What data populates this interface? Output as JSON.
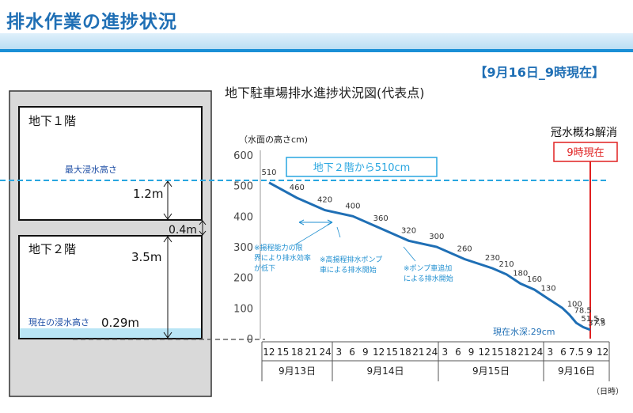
{
  "header": {
    "title": "排水作業の進捗状況",
    "as_of": "【9月16日_9時現在】"
  },
  "building": {
    "floor1_label": "地下１階",
    "floor2_label": "地下２階",
    "max_flood_label": "最大浸水高さ",
    "current_flood_label": "現在の浸水高さ",
    "current_flood_value": "0.29m",
    "dim_upper": "1.2m",
    "dim_slab": "0.4m",
    "dim_lower": "3.5m"
  },
  "chart_data": {
    "type": "line",
    "title": "地下駐車場排水進捗状況図(代表点)",
    "ylabel": "（水面の高さcm)",
    "xlabel": "（日時）",
    "ylim": [
      0,
      600
    ],
    "yticks": [
      0,
      100,
      200,
      300,
      400,
      500,
      600
    ],
    "x_ticks": {
      "9月13日": [
        "12",
        "15",
        "18",
        "21",
        "24"
      ],
      "9月14日": [
        "3",
        "6",
        "9",
        "12",
        "15",
        "18",
        "21",
        "24"
      ],
      "9月15日": [
        "3",
        "6",
        "9",
        "12",
        "15",
        "18",
        "21",
        "24"
      ],
      "9月16日": [
        "3",
        "6",
        "7.5",
        "9",
        "12"
      ]
    },
    "days": [
      "9月13日",
      "9月14日",
      "9月15日",
      "9月16日"
    ],
    "points": [
      {
        "x": "9/13 12:00",
        "y": 510,
        "label": "510"
      },
      {
        "x": "9/13 18:00",
        "y": 460,
        "label": "460"
      },
      {
        "x": "9/13 24:00",
        "y": 420,
        "label": "420"
      },
      {
        "x": "9/14 6:00",
        "y": 400,
        "label": "400"
      },
      {
        "x": "9/14 12:00",
        "y": 360,
        "label": "360"
      },
      {
        "x": "9/14 18:00",
        "y": 320,
        "label": "320"
      },
      {
        "x": "9/15 0:00",
        "y": 300,
        "label": "300"
      },
      {
        "x": "9/15 6:00",
        "y": 260,
        "label": "260"
      },
      {
        "x": "9/15 12:00",
        "y": 230,
        "label": "230"
      },
      {
        "x": "9/15 15:00",
        "y": 210,
        "label": "210"
      },
      {
        "x": "9/15 18:00",
        "y": 180,
        "label": "180"
      },
      {
        "x": "9/15 21:00",
        "y": 160,
        "label": "160"
      },
      {
        "x": "9/16 0:00",
        "y": 130,
        "label": "130"
      },
      {
        "x": "9/16 3:00",
        "y": 100,
        "label": "100"
      },
      {
        "x": "9/16 4:30",
        "y": 78.5,
        "label": "78.5"
      },
      {
        "x": "9/16 6:00",
        "y": 51.5,
        "label": "51.5"
      },
      {
        "x": "9/16 7:30",
        "y": 37.5,
        "label": "37.5"
      },
      {
        "x": "9/16 9:00",
        "y": 29,
        "label": "29"
      }
    ],
    "annotations": {
      "max_level_box": "地下２階から510cm",
      "resolved_label": "冠水概ね解消",
      "now_marker": "9時現在",
      "current_depth": "現在水深:29cm",
      "note1": [
        "※揚程能力の限",
        "界により排水効率",
        "が低下"
      ],
      "note2": [
        "※高揚程排水ポンプ",
        "車による排水開始"
      ],
      "note3": [
        "※ポンプ車追加",
        "による排水開始"
      ]
    },
    "colors": {
      "line": "#1f6fb5",
      "max_line": "#29a6e0",
      "now_line": "#e02020",
      "water": "#b9e5f5"
    }
  }
}
